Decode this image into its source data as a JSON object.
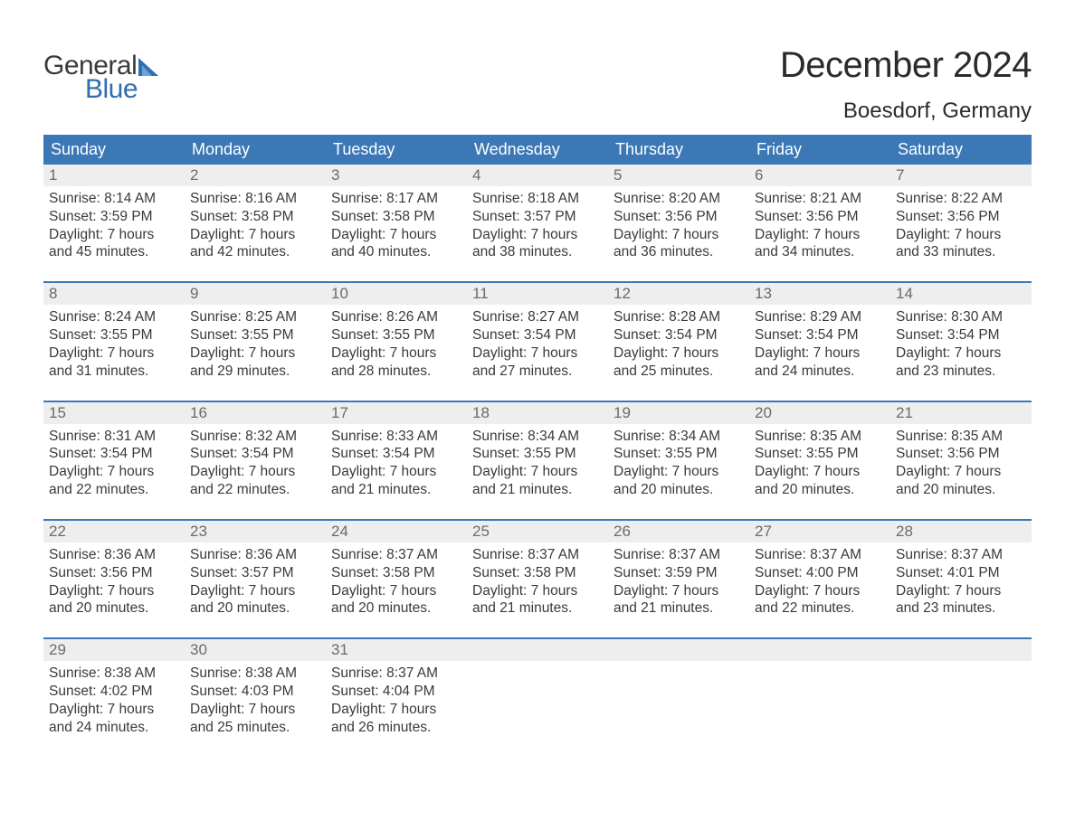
{
  "colors": {
    "header_bg": "#3b78b5",
    "header_text": "#ffffff",
    "daynum_bg": "#eeeeee",
    "daynum_text": "#6a6a6a",
    "body_text": "#3a3a3a",
    "title_text": "#2b2b2b",
    "week_border": "#3b78b5",
    "logo_blue": "#2f6eb0",
    "logo_gray": "#3a3a3a",
    "page_bg": "#ffffff"
  },
  "typography": {
    "month_title_pt": 40,
    "location_pt": 24,
    "dow_pt": 18,
    "daynum_pt": 17,
    "body_pt": 15.5,
    "logo_pt": 30,
    "font_family": "Arial"
  },
  "logo": {
    "word1": "General",
    "word2": "Blue"
  },
  "title": "December 2024",
  "location": "Boesdorf, Germany",
  "days_of_week": [
    "Sunday",
    "Monday",
    "Tuesday",
    "Wednesday",
    "Thursday",
    "Friday",
    "Saturday"
  ],
  "labels": {
    "sunrise": "Sunrise:",
    "sunset": "Sunset:",
    "daylight": "Daylight:"
  },
  "weeks": [
    [
      {
        "n": 1,
        "sunrise": "8:14 AM",
        "sunset": "3:59 PM",
        "daylight": "7 hours and 45 minutes."
      },
      {
        "n": 2,
        "sunrise": "8:16 AM",
        "sunset": "3:58 PM",
        "daylight": "7 hours and 42 minutes."
      },
      {
        "n": 3,
        "sunrise": "8:17 AM",
        "sunset": "3:58 PM",
        "daylight": "7 hours and 40 minutes."
      },
      {
        "n": 4,
        "sunrise": "8:18 AM",
        "sunset": "3:57 PM",
        "daylight": "7 hours and 38 minutes."
      },
      {
        "n": 5,
        "sunrise": "8:20 AM",
        "sunset": "3:56 PM",
        "daylight": "7 hours and 36 minutes."
      },
      {
        "n": 6,
        "sunrise": "8:21 AM",
        "sunset": "3:56 PM",
        "daylight": "7 hours and 34 minutes."
      },
      {
        "n": 7,
        "sunrise": "8:22 AM",
        "sunset": "3:56 PM",
        "daylight": "7 hours and 33 minutes."
      }
    ],
    [
      {
        "n": 8,
        "sunrise": "8:24 AM",
        "sunset": "3:55 PM",
        "daylight": "7 hours and 31 minutes."
      },
      {
        "n": 9,
        "sunrise": "8:25 AM",
        "sunset": "3:55 PM",
        "daylight": "7 hours and 29 minutes."
      },
      {
        "n": 10,
        "sunrise": "8:26 AM",
        "sunset": "3:55 PM",
        "daylight": "7 hours and 28 minutes."
      },
      {
        "n": 11,
        "sunrise": "8:27 AM",
        "sunset": "3:54 PM",
        "daylight": "7 hours and 27 minutes."
      },
      {
        "n": 12,
        "sunrise": "8:28 AM",
        "sunset": "3:54 PM",
        "daylight": "7 hours and 25 minutes."
      },
      {
        "n": 13,
        "sunrise": "8:29 AM",
        "sunset": "3:54 PM",
        "daylight": "7 hours and 24 minutes."
      },
      {
        "n": 14,
        "sunrise": "8:30 AM",
        "sunset": "3:54 PM",
        "daylight": "7 hours and 23 minutes."
      }
    ],
    [
      {
        "n": 15,
        "sunrise": "8:31 AM",
        "sunset": "3:54 PM",
        "daylight": "7 hours and 22 minutes."
      },
      {
        "n": 16,
        "sunrise": "8:32 AM",
        "sunset": "3:54 PM",
        "daylight": "7 hours and 22 minutes."
      },
      {
        "n": 17,
        "sunrise": "8:33 AM",
        "sunset": "3:54 PM",
        "daylight": "7 hours and 21 minutes."
      },
      {
        "n": 18,
        "sunrise": "8:34 AM",
        "sunset": "3:55 PM",
        "daylight": "7 hours and 21 minutes."
      },
      {
        "n": 19,
        "sunrise": "8:34 AM",
        "sunset": "3:55 PM",
        "daylight": "7 hours and 20 minutes."
      },
      {
        "n": 20,
        "sunrise": "8:35 AM",
        "sunset": "3:55 PM",
        "daylight": "7 hours and 20 minutes."
      },
      {
        "n": 21,
        "sunrise": "8:35 AM",
        "sunset": "3:56 PM",
        "daylight": "7 hours and 20 minutes."
      }
    ],
    [
      {
        "n": 22,
        "sunrise": "8:36 AM",
        "sunset": "3:56 PM",
        "daylight": "7 hours and 20 minutes."
      },
      {
        "n": 23,
        "sunrise": "8:36 AM",
        "sunset": "3:57 PM",
        "daylight": "7 hours and 20 minutes."
      },
      {
        "n": 24,
        "sunrise": "8:37 AM",
        "sunset": "3:58 PM",
        "daylight": "7 hours and 20 minutes."
      },
      {
        "n": 25,
        "sunrise": "8:37 AM",
        "sunset": "3:58 PM",
        "daylight": "7 hours and 21 minutes."
      },
      {
        "n": 26,
        "sunrise": "8:37 AM",
        "sunset": "3:59 PM",
        "daylight": "7 hours and 21 minutes."
      },
      {
        "n": 27,
        "sunrise": "8:37 AM",
        "sunset": "4:00 PM",
        "daylight": "7 hours and 22 minutes."
      },
      {
        "n": 28,
        "sunrise": "8:37 AM",
        "sunset": "4:01 PM",
        "daylight": "7 hours and 23 minutes."
      }
    ],
    [
      {
        "n": 29,
        "sunrise": "8:38 AM",
        "sunset": "4:02 PM",
        "daylight": "7 hours and 24 minutes."
      },
      {
        "n": 30,
        "sunrise": "8:38 AM",
        "sunset": "4:03 PM",
        "daylight": "7 hours and 25 minutes."
      },
      {
        "n": 31,
        "sunrise": "8:37 AM",
        "sunset": "4:04 PM",
        "daylight": "7 hours and 26 minutes."
      },
      null,
      null,
      null,
      null
    ]
  ]
}
